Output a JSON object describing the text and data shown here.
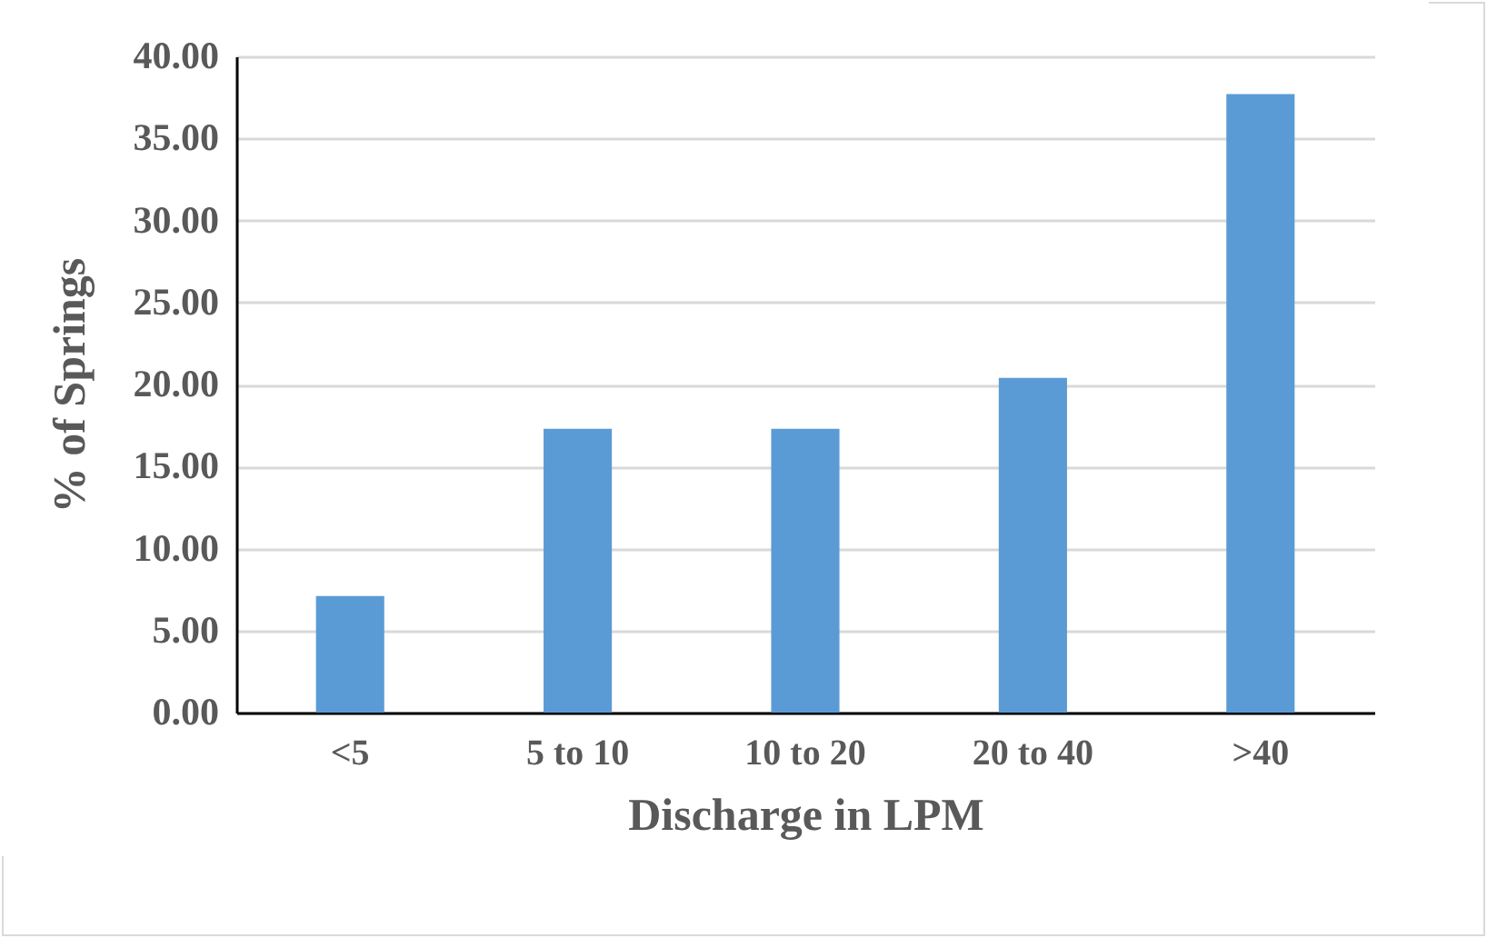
{
  "chart_data": {
    "type": "bar",
    "xlabel": "Discharge in LPM",
    "ylabel": "% of Springs",
    "categories": [
      "<5",
      "5 to 10",
      "10 to 20",
      "20 to 40",
      ">40"
    ],
    "values": [
      7.1,
      17.3,
      17.3,
      20.4,
      37.7
    ],
    "color": "#5b9bd5",
    "ylim": [
      0,
      40
    ],
    "yticks": [
      {
        "value": 0,
        "label": "0.00"
      },
      {
        "value": 5,
        "label": "5.00"
      },
      {
        "value": 10,
        "label": "10.00"
      },
      {
        "value": 15,
        "label": "15.00"
      },
      {
        "value": 20,
        "label": "20.00"
      },
      {
        "value": 25,
        "label": "25.00"
      },
      {
        "value": 30,
        "label": "30.00"
      },
      {
        "value": 35,
        "label": "35.00"
      },
      {
        "value": 40,
        "label": "40.00"
      }
    ],
    "grid": "y"
  }
}
